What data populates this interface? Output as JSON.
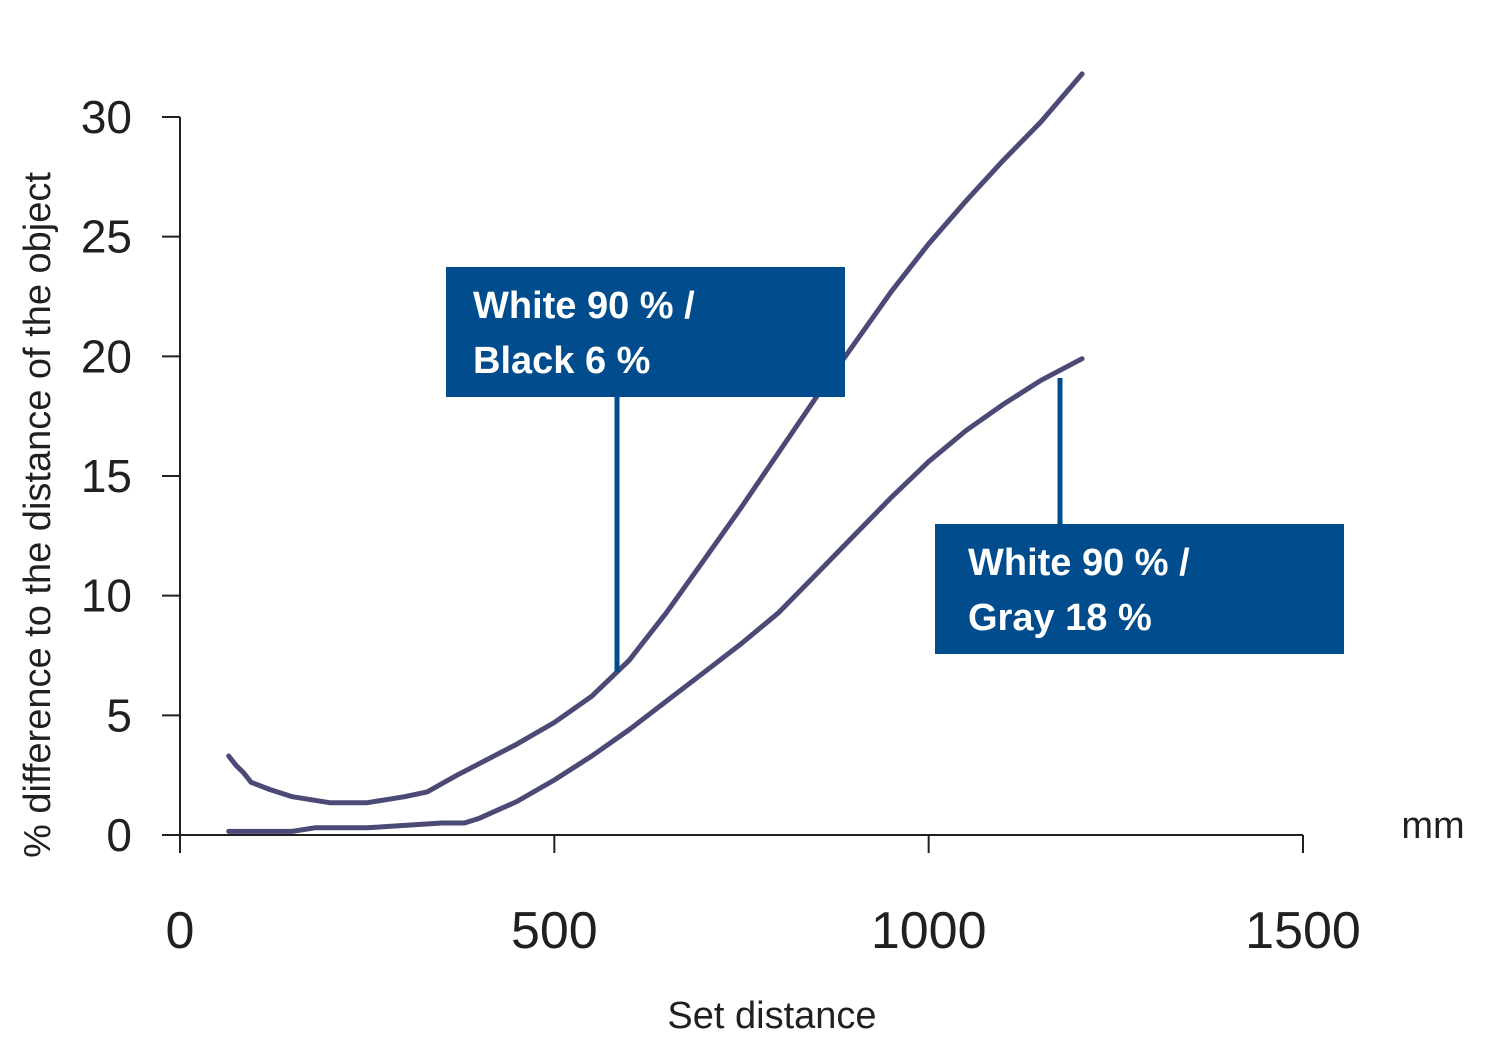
{
  "chart_data": {
    "type": "line",
    "xlabel": "Set distance",
    "ylabel": "% difference to the distance of the object",
    "x_unit": "mm",
    "xlim": [
      0,
      1500
    ],
    "ylim": [
      0,
      30
    ],
    "x_ticks": [
      "0",
      "500",
      "1000",
      "1500"
    ],
    "y_ticks": [
      "0",
      "5",
      "10",
      "15",
      "20",
      "25",
      "30"
    ],
    "grid": false,
    "colors": {
      "series": "#4b4a76",
      "callout": "#004c8c",
      "axis": "#231f20"
    },
    "series": [
      {
        "label_lines": [
          "White 90 % /",
          "Black 6 %"
        ],
        "points": [
          [
            65,
            3.3
          ],
          [
            75,
            2.9
          ],
          [
            85,
            2.6
          ],
          [
            95,
            2.2
          ],
          [
            120,
            1.9
          ],
          [
            150,
            1.6
          ],
          [
            180,
            1.45
          ],
          [
            200,
            1.35
          ],
          [
            250,
            1.35
          ],
          [
            300,
            1.6
          ],
          [
            330,
            1.8
          ],
          [
            370,
            2.5
          ],
          [
            450,
            3.8
          ],
          [
            500,
            4.7
          ],
          [
            550,
            5.8
          ],
          [
            600,
            7.3
          ],
          [
            650,
            9.3
          ],
          [
            700,
            11.5
          ],
          [
            750,
            13.7
          ],
          [
            800,
            16.0
          ],
          [
            850,
            18.3
          ],
          [
            900,
            20.5
          ],
          [
            950,
            22.7
          ],
          [
            1000,
            24.7
          ],
          [
            1050,
            26.5
          ],
          [
            1100,
            28.2
          ],
          [
            1150,
            29.8
          ],
          [
            1205,
            31.8
          ]
        ]
      },
      {
        "label_lines": [
          "White 90 % /",
          "Gray 18 %"
        ],
        "points": [
          [
            65,
            0.15
          ],
          [
            150,
            0.15
          ],
          [
            180,
            0.3
          ],
          [
            250,
            0.3
          ],
          [
            300,
            0.4
          ],
          [
            350,
            0.5
          ],
          [
            380,
            0.5
          ],
          [
            400,
            0.7
          ],
          [
            450,
            1.4
          ],
          [
            500,
            2.3
          ],
          [
            550,
            3.3
          ],
          [
            600,
            4.4
          ],
          [
            650,
            5.6
          ],
          [
            700,
            6.8
          ],
          [
            750,
            8.0
          ],
          [
            800,
            9.3
          ],
          [
            850,
            10.9
          ],
          [
            900,
            12.5
          ],
          [
            950,
            14.1
          ],
          [
            1000,
            15.6
          ],
          [
            1050,
            16.9
          ],
          [
            1100,
            18.0
          ],
          [
            1150,
            19.0
          ],
          [
            1205,
            19.9
          ]
        ]
      }
    ]
  }
}
